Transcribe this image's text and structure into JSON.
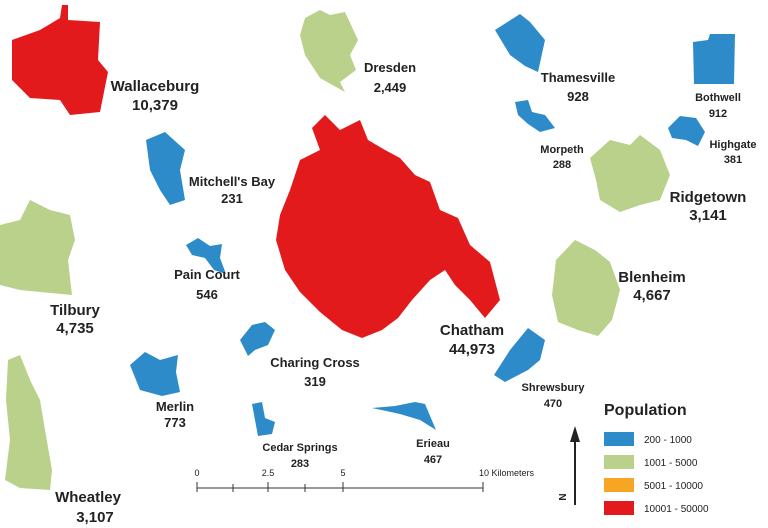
{
  "legend": {
    "title": "Population",
    "classes": [
      {
        "label": "200 - 1000",
        "color": "#2e8bc9"
      },
      {
        "label": "1001 - 5000",
        "color": "#b9d18a"
      },
      {
        "label": "5001 - 10000",
        "color": "#f6a623"
      },
      {
        "label": "10001 - 50000",
        "color": "#e31a1c"
      }
    ]
  },
  "places": [
    {
      "name": "Wallaceburg",
      "population": "10,379"
    },
    {
      "name": "Dresden",
      "population": "2,449"
    },
    {
      "name": "Thamesville",
      "population": "928"
    },
    {
      "name": "Bothwell",
      "population": "912"
    },
    {
      "name": "Morpeth",
      "population": "288"
    },
    {
      "name": "Highgate",
      "population": "381"
    },
    {
      "name": "Ridgetown",
      "population": "3,141"
    },
    {
      "name": "Mitchell's Bay",
      "population": "231"
    },
    {
      "name": "Tilbury",
      "population": "4,735"
    },
    {
      "name": "Pain Court",
      "population": "546"
    },
    {
      "name": "Blenheim",
      "population": "4,667"
    },
    {
      "name": "Chatham",
      "population": "44,973"
    },
    {
      "name": "Charing Cross",
      "population": "319"
    },
    {
      "name": "Shrewsbury",
      "population": "470"
    },
    {
      "name": "Merlin",
      "population": "773"
    },
    {
      "name": "Cedar Springs",
      "population": "283"
    },
    {
      "name": "Erieau",
      "population": "467"
    },
    {
      "name": "Wheatley",
      "population": "3,107"
    }
  ],
  "scale_bar": {
    "labels": [
      "0",
      "2.5",
      "5",
      "10 Kilometers"
    ]
  },
  "north_arrow": {
    "label": "N"
  }
}
